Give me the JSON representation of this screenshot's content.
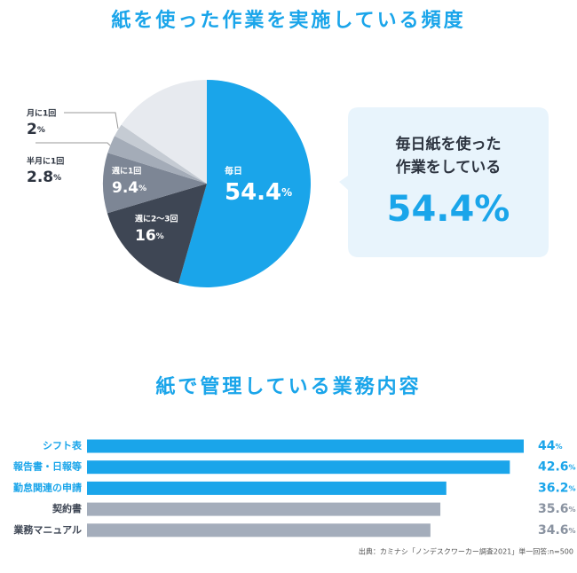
{
  "chart_data": [
    {
      "type": "pie",
      "title": "紙を使った作業を実施している頻度",
      "categories": [
        "毎日",
        "週に2〜3回",
        "週に1回",
        "半月に1回",
        "月に1回",
        null
      ],
      "values": [
        54.4,
        16,
        9.4,
        2.8,
        2,
        15.4
      ],
      "value_labels": [
        "54.4%",
        "16%",
        "9.4%",
        "2.8%",
        "2%",
        null
      ],
      "colors": [
        "#1aa5ea",
        "#3e4654",
        "#7d8695",
        "#a4acb8",
        "#c5cbd3",
        "#e7eaef"
      ],
      "callout": {
        "lines": [
          "毎日紙を使った",
          "作業をしている"
        ],
        "value": "54.4%"
      }
    },
    {
      "type": "bar",
      "title": "紙で管理している業務内容",
      "categories": [
        "シフト表",
        "報告書・日報等",
        "勤怠関連の申請",
        "契約書",
        "業務マニュアル"
      ],
      "values": [
        44,
        42.6,
        36.2,
        35.6,
        34.6
      ],
      "value_labels": [
        "44%",
        "42.6%",
        "36.2%",
        "35.6%",
        "34.6%"
      ],
      "colors": [
        "#1aa5ea",
        "#1aa5ea",
        "#1aa5ea",
        "#a4adbb",
        "#a4adbb"
      ],
      "xlim": [
        0,
        44
      ],
      "source": "出典：カミナシ「ノンデスクワーカー調査2021」単一回答:n=500"
    }
  ]
}
